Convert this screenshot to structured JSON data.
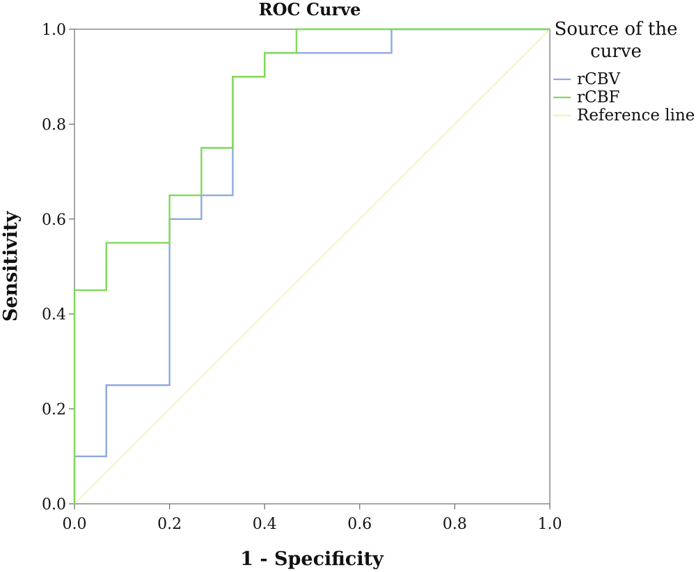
{
  "chart_data": {
    "type": "line",
    "title": "ROC Curve",
    "xlabel": "1 - Specificity",
    "ylabel": "Sensitivity",
    "xlim": [
      0,
      1
    ],
    "ylim": [
      0,
      1
    ],
    "x_ticks": [
      "0.0",
      "0.2",
      "0.4",
      "0.6",
      "0.8",
      "1.0"
    ],
    "y_ticks": [
      "0.0",
      "0.2",
      "0.4",
      "0.6",
      "0.8",
      "1.0"
    ],
    "grid": false,
    "legend": {
      "title": [
        "Source of the",
        "curve"
      ],
      "position": "right"
    },
    "series": [
      {
        "name": "rCBV",
        "color": "#8fa8e0",
        "x": [
          0,
          0,
          0.067,
          0.067,
          0.2,
          0.2,
          0.267,
          0.267,
          0.333,
          0.333,
          0.4,
          0.4,
          0.467,
          0.467,
          0.667,
          0.667,
          1.0
        ],
        "y": [
          0,
          0.1,
          0.1,
          0.25,
          0.25,
          0.6,
          0.6,
          0.65,
          0.65,
          0.9,
          0.9,
          0.95,
          0.95,
          0.95,
          0.95,
          1.0,
          1.0
        ]
      },
      {
        "name": "rCBF",
        "color": "#7ed957",
        "x": [
          0,
          0,
          0.067,
          0.067,
          0.2,
          0.2,
          0.267,
          0.267,
          0.333,
          0.333,
          0.4,
          0.4,
          0.467,
          0.467,
          1.0
        ],
        "y": [
          0,
          0.45,
          0.45,
          0.55,
          0.55,
          0.65,
          0.65,
          0.75,
          0.75,
          0.9,
          0.9,
          0.95,
          0.95,
          1.0,
          1.0
        ]
      },
      {
        "name": "Reference line",
        "color": "#f5f0b8",
        "x": [
          0,
          1
        ],
        "y": [
          0,
          1
        ]
      }
    ]
  }
}
